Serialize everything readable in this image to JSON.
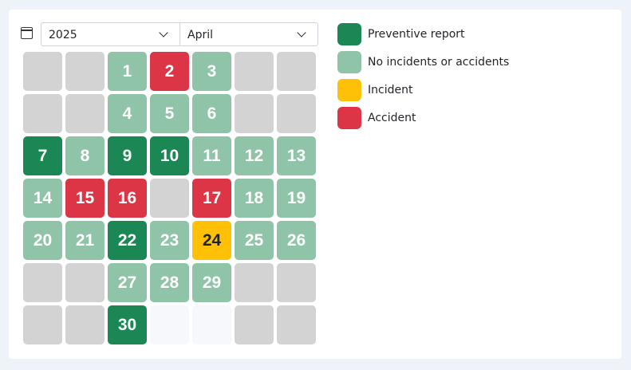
{
  "selectors": {
    "year": "2025",
    "month": "April"
  },
  "colors": {
    "preventive": "#1a8754",
    "none": "#8fc4a8",
    "incident": "#ffc107",
    "accident": "#dc3545",
    "empty": "#d3d3d3"
  },
  "legend": [
    {
      "key": "preventive",
      "label": "Preventive report"
    },
    {
      "key": "none",
      "label": "No incidents or accidents"
    },
    {
      "key": "incident",
      "label": "Incident"
    },
    {
      "key": "accident",
      "label": "Accident"
    }
  ],
  "calendar": {
    "cells": [
      {
        "day": "",
        "status": "empty"
      },
      {
        "day": "",
        "status": "empty"
      },
      {
        "day": "1",
        "status": "none"
      },
      {
        "day": "2",
        "status": "accident"
      },
      {
        "day": "3",
        "status": "none"
      },
      {
        "day": "",
        "status": "empty"
      },
      {
        "day": "",
        "status": "empty"
      },
      {
        "day": "",
        "status": "empty"
      },
      {
        "day": "",
        "status": "empty"
      },
      {
        "day": "4",
        "status": "none"
      },
      {
        "day": "5",
        "status": "none"
      },
      {
        "day": "6",
        "status": "none"
      },
      {
        "day": "",
        "status": "empty"
      },
      {
        "day": "",
        "status": "empty"
      },
      {
        "day": "7",
        "status": "preventive"
      },
      {
        "day": "8",
        "status": "none"
      },
      {
        "day": "9",
        "status": "preventive"
      },
      {
        "day": "10",
        "status": "preventive"
      },
      {
        "day": "11",
        "status": "none"
      },
      {
        "day": "12",
        "status": "none"
      },
      {
        "day": "13",
        "status": "none"
      },
      {
        "day": "14",
        "status": "none"
      },
      {
        "day": "15",
        "status": "accident"
      },
      {
        "day": "16",
        "status": "accident"
      },
      {
        "day": "",
        "status": "empty"
      },
      {
        "day": "17",
        "status": "accident"
      },
      {
        "day": "18",
        "status": "none"
      },
      {
        "day": "19",
        "status": "none"
      },
      {
        "day": "20",
        "status": "none"
      },
      {
        "day": "21",
        "status": "none"
      },
      {
        "day": "22",
        "status": "preventive"
      },
      {
        "day": "23",
        "status": "none"
      },
      {
        "day": "24",
        "status": "incident"
      },
      {
        "day": "25",
        "status": "none"
      },
      {
        "day": "26",
        "status": "none"
      },
      {
        "day": "",
        "status": "empty"
      },
      {
        "day": "",
        "status": "empty"
      },
      {
        "day": "27",
        "status": "none"
      },
      {
        "day": "28",
        "status": "none"
      },
      {
        "day": "29",
        "status": "none"
      },
      {
        "day": "",
        "status": "empty"
      },
      {
        "day": "",
        "status": "empty"
      },
      {
        "day": "",
        "status": "empty"
      },
      {
        "day": "",
        "status": "empty"
      },
      {
        "day": "30",
        "status": "preventive"
      },
      {
        "day": "",
        "status": "faint"
      },
      {
        "day": "",
        "status": "faint"
      },
      {
        "day": "",
        "status": "empty"
      },
      {
        "day": "",
        "status": "empty"
      }
    ]
  }
}
